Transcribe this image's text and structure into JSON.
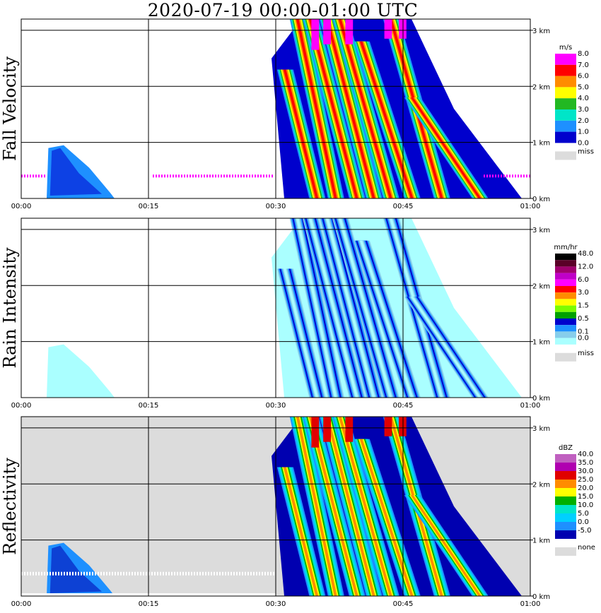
{
  "title": "2020-07-19   00:00-01:00 UTC",
  "chart_data": [
    {
      "type": "heatmap",
      "ylabel": "Fall Velocity",
      "x_ticks": [
        "00:00",
        "00:15",
        "00:30",
        "00:45",
        "01:00"
      ],
      "y_ticks": [
        "0 km",
        "1 km",
        "2 km",
        "3 km"
      ],
      "xlim": [
        "00:00",
        "01:00"
      ],
      "ylim_km": [
        0,
        3.2
      ],
      "grid": true,
      "colorbar": {
        "unit": "m/s",
        "levels": [
          "8.0",
          "7.0",
          "6.0",
          "5.0",
          "4.0",
          "3.0",
          "2.0",
          "1.0",
          "0.0"
        ],
        "colors": [
          "#ff00ff",
          "#ff0000",
          "#ff8c00",
          "#ffff00",
          "#22b822",
          "#00e5c8",
          "#1e90ff",
          "#0000cd"
        ],
        "missing_label": "miss",
        "missing_color": "#dcdcdc"
      },
      "background": "#ffffff"
    },
    {
      "type": "heatmap",
      "ylabel": "Rain Intensity",
      "x_ticks": [
        "00:00",
        "00:15",
        "00:30",
        "00:45",
        "01:00"
      ],
      "y_ticks": [
        "0 km",
        "1 km",
        "2 km",
        "3 km"
      ],
      "xlim": [
        "00:00",
        "01:00"
      ],
      "ylim_km": [
        0,
        3.2
      ],
      "grid": true,
      "colorbar": {
        "unit": "mm/hr",
        "levels": [
          "48.0",
          "",
          "12.0",
          "",
          "6.0",
          "",
          "3.0",
          "",
          "1.5",
          "",
          "0.5",
          "",
          "0.1",
          "0.0"
        ],
        "colors": [
          "#000000",
          "#5a0028",
          "#a0006e",
          "#c000c8",
          "#ff00ff",
          "#ff0000",
          "#ff8c00",
          "#ffff00",
          "#7cfc00",
          "#00a000",
          "#0000cd",
          "#1e90ff",
          "#87ceeb",
          "#aaffff"
        ],
        "missing_label": "miss",
        "missing_color": "#dcdcdc"
      },
      "background": "#ffffff"
    },
    {
      "type": "heatmap",
      "ylabel": "Reflectivity",
      "x_ticks": [
        "00:00",
        "00:15",
        "00:30",
        "00:45",
        "01:00"
      ],
      "y_ticks": [
        "0 km",
        "1 km",
        "2 km",
        "3 km"
      ],
      "xlim": [
        "00:00",
        "01:00"
      ],
      "ylim_km": [
        0,
        3.2
      ],
      "grid": true,
      "colorbar": {
        "unit": "dBZ",
        "levels": [
          "40.0",
          "35.0",
          "30.0",
          "25.0",
          "20.0",
          "15.0",
          "10.0",
          "5.0",
          "0.0",
          "-5.0"
        ],
        "colors": [
          "#c060c0",
          "#b000b0",
          "#e00000",
          "#ff8c00",
          "#ffff00",
          "#00b000",
          "#00e5c8",
          "#00d0ff",
          "#1e90ff",
          "#0000b0"
        ],
        "missing_label": "none",
        "missing_color": "#dcdcdc"
      },
      "background": "#dcdcdc"
    }
  ]
}
